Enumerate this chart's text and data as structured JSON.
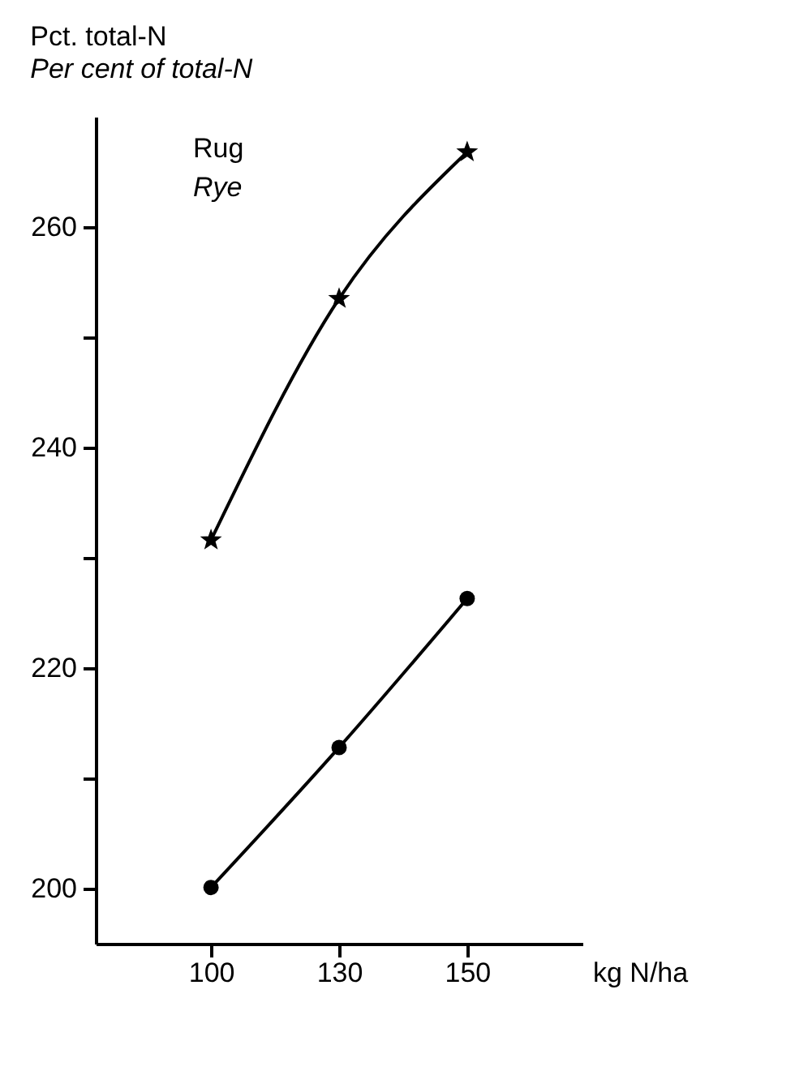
{
  "chart_data": {
    "type": "line",
    "title": "Pct. total-N",
    "subtitle": "Per cent of total-N",
    "xlabel": "kg N/ha",
    "categories": [
      "100",
      "130",
      "150"
    ],
    "series": [
      {
        "color": "#000000",
        "marker": "star",
        "values": [
          231.6,
          253.5,
          266.8
        ]
      },
      {
        "color": "#000000",
        "marker": "circle",
        "values": [
          200.1,
          212.8,
          226.3
        ]
      }
    ],
    "annotations": [
      "Rug",
      "Rye"
    ],
    "ylim": [
      195,
      270
    ],
    "yticks": [
      200,
      {
        "value": 210,
        "label": null
      },
      220,
      {
        "value": 230,
        "label": null
      },
      240,
      {
        "value": 250,
        "label": null
      },
      260
    ],
    "grid": false,
    "line_style": "solid"
  }
}
